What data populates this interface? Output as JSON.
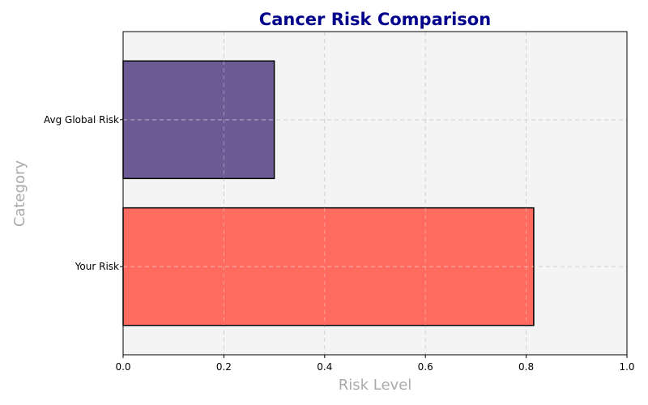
{
  "chart_data": {
    "type": "bar",
    "orientation": "horizontal",
    "title": "Cancer Risk Comparison",
    "xlabel": "Risk Level",
    "ylabel": "Category",
    "categories": [
      "Your Risk",
      "Avg Global Risk"
    ],
    "values": [
      0.815,
      0.3
    ],
    "bar_colors": [
      "#ff6b5e",
      "#6b5b95"
    ],
    "xlim": [
      0,
      1.0
    ],
    "xticks": [
      "0.0",
      "0.2",
      "0.4",
      "0.6",
      "0.8",
      "1.0"
    ],
    "xtick_values": [
      0,
      0.2,
      0.4,
      0.6,
      0.8,
      1.0
    ],
    "grid": true,
    "legend": "none",
    "colors": {
      "title": "#00008b",
      "axis_label": "#aaaaaa",
      "plot_background": "#f4f4f4"
    }
  }
}
